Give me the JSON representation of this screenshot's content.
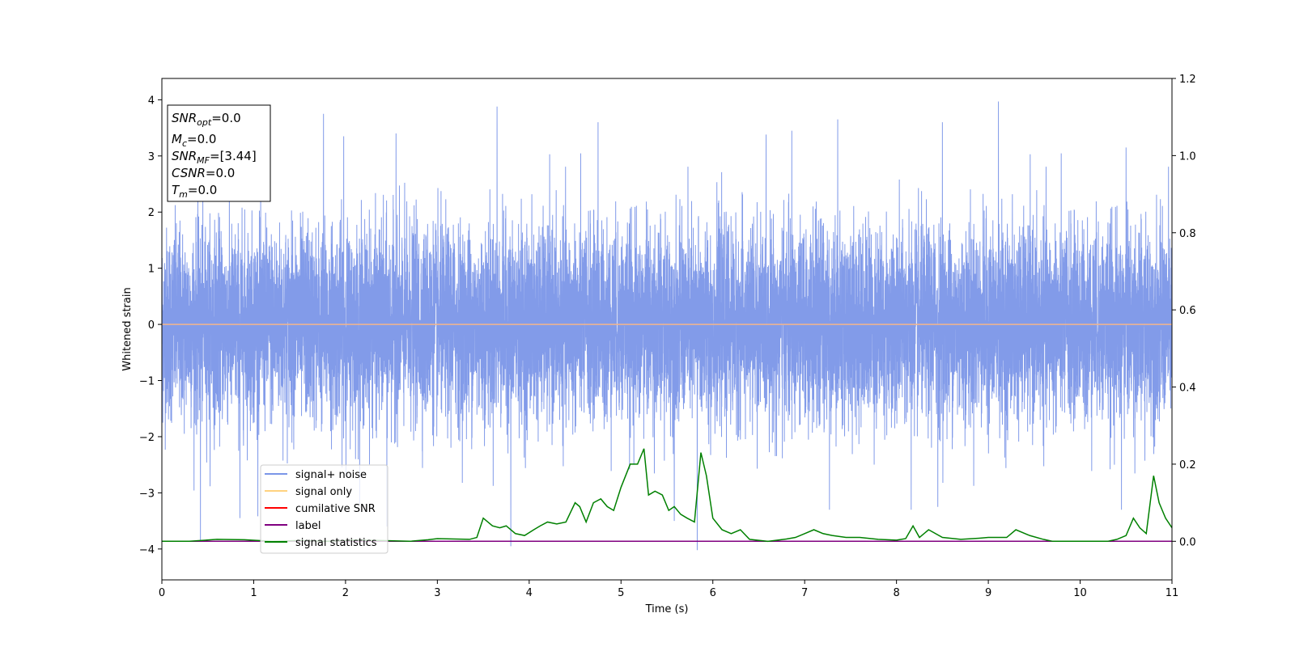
{
  "chart_data": {
    "type": "line",
    "xlabel": "Time (s)",
    "ylabel": "Whitened strain",
    "xlim": [
      0,
      11
    ],
    "ylim": [
      -4.55,
      4.38
    ],
    "y2lim": [
      -0.1,
      1.2
    ],
    "x_ticks": [
      "0",
      "1",
      "2",
      "3",
      "4",
      "5",
      "6",
      "7",
      "8",
      "9",
      "10",
      "11"
    ],
    "y_ticks": [
      "4",
      "3",
      "2",
      "1",
      "0",
      "−1",
      "−2",
      "−3",
      "−4"
    ],
    "y2_ticks": [
      "1.2",
      "1.0",
      "0.8",
      "0.6",
      "0.4",
      "0.2",
      "0.0"
    ],
    "grid": false,
    "legend_position": "lower-left",
    "legend": [
      {
        "label": "signal+ noise",
        "color": "#7b96e8"
      },
      {
        "label": "signal only",
        "color": "#ffd27f"
      },
      {
        "label": "cumilative SNR",
        "color": "#ff0000"
      },
      {
        "label": "label",
        "color": "#800080"
      },
      {
        "label": "signal statistics",
        "color": "#008000"
      }
    ],
    "info_box": [
      {
        "name": "SNR",
        "sub": "opt",
        "value": "=0.0"
      },
      {
        "name": "M",
        "sub": "c",
        "value": "=0.0"
      },
      {
        "name": "SNR",
        "sub": "MF",
        "value": "=[3.44]"
      },
      {
        "name": "CSNR",
        "sub": "",
        "value": "=0.0"
      },
      {
        "name": "T",
        "sub": "m",
        "value": "=0.0"
      }
    ],
    "series": [
      {
        "name": "signal+ noise",
        "axis": "left",
        "color": "#7b96e8",
        "noise_sigma": 0.85,
        "spikes": [
          {
            "x": 1.76,
            "y": 3.75
          },
          {
            "x": 3.65,
            "y": 3.88
          },
          {
            "x": 9.11,
            "y": 3.97
          },
          {
            "x": 0.42,
            "y": -3.85
          },
          {
            "x": 5.83,
            "y": -4.02
          },
          {
            "x": 3.8,
            "y": -3.95
          },
          {
            "x": 1.98,
            "y": 3.35
          },
          {
            "x": 2.55,
            "y": 3.4
          },
          {
            "x": 4.75,
            "y": 3.6
          },
          {
            "x": 6.86,
            "y": 3.45
          },
          {
            "x": 7.36,
            "y": 3.65
          },
          {
            "x": 8.5,
            "y": 3.6
          },
          {
            "x": 10.5,
            "y": 3.15
          },
          {
            "x": 0.85,
            "y": -3.45
          },
          {
            "x": 7.27,
            "y": -3.3
          },
          {
            "x": 8.45,
            "y": -3.25
          },
          {
            "x": 8.16,
            "y": -3.3
          },
          {
            "x": 10.45,
            "y": -3.3
          },
          {
            "x": 2.45,
            "y": -3.6
          },
          {
            "x": 5.58,
            "y": -3.5
          }
        ]
      },
      {
        "name": "signal only",
        "axis": "left",
        "color": "#f2b58c",
        "constant": 0.0
      },
      {
        "name": "label",
        "axis": "right",
        "color": "#800080",
        "constant": 0.0
      },
      {
        "name": "signal statistics",
        "axis": "right",
        "color": "#008000",
        "x": [
          0,
          0.3,
          0.6,
          0.9,
          1.2,
          1.5,
          1.8,
          2.1,
          2.4,
          2.7,
          2.9,
          3.0,
          3.2,
          3.35,
          3.43,
          3.5,
          3.6,
          3.68,
          3.75,
          3.85,
          3.95,
          4.05,
          4.12,
          4.2,
          4.3,
          4.4,
          4.5,
          4.55,
          4.62,
          4.7,
          4.78,
          4.85,
          4.92,
          5.0,
          5.1,
          5.18,
          5.25,
          5.3,
          5.37,
          5.45,
          5.52,
          5.58,
          5.65,
          5.72,
          5.8,
          5.87,
          5.93,
          6.0,
          6.1,
          6.2,
          6.3,
          6.4,
          6.6,
          6.8,
          6.9,
          7.0,
          7.1,
          7.2,
          7.3,
          7.45,
          7.6,
          7.8,
          8.0,
          8.1,
          8.18,
          8.25,
          8.35,
          8.5,
          8.7,
          8.9,
          9.0,
          9.2,
          9.3,
          9.45,
          9.6,
          9.7,
          9.9,
          10.1,
          10.3,
          10.4,
          10.5,
          10.58,
          10.65,
          10.72,
          10.8,
          10.86,
          10.93,
          11.0
        ],
        "y": [
          0.0,
          0.0,
          0.005,
          0.004,
          0.0,
          0.002,
          0.0,
          0.003,
          0.002,
          0.0,
          0.004,
          0.007,
          0.006,
          0.005,
          0.01,
          0.06,
          0.04,
          0.035,
          0.04,
          0.02,
          0.015,
          0.03,
          0.04,
          0.05,
          0.045,
          0.05,
          0.1,
          0.09,
          0.05,
          0.1,
          0.11,
          0.09,
          0.08,
          0.14,
          0.2,
          0.2,
          0.24,
          0.12,
          0.13,
          0.12,
          0.08,
          0.09,
          0.07,
          0.06,
          0.05,
          0.23,
          0.17,
          0.06,
          0.03,
          0.02,
          0.03,
          0.005,
          0.0,
          0.006,
          0.01,
          0.02,
          0.03,
          0.02,
          0.015,
          0.01,
          0.01,
          0.005,
          0.003,
          0.007,
          0.04,
          0.01,
          0.03,
          0.01,
          0.005,
          0.008,
          0.01,
          0.01,
          0.03,
          0.015,
          0.005,
          0.0,
          0.0,
          0.0,
          0.0,
          0.005,
          0.015,
          0.06,
          0.035,
          0.02,
          0.17,
          0.1,
          0.06,
          0.035
        ]
      }
    ]
  }
}
